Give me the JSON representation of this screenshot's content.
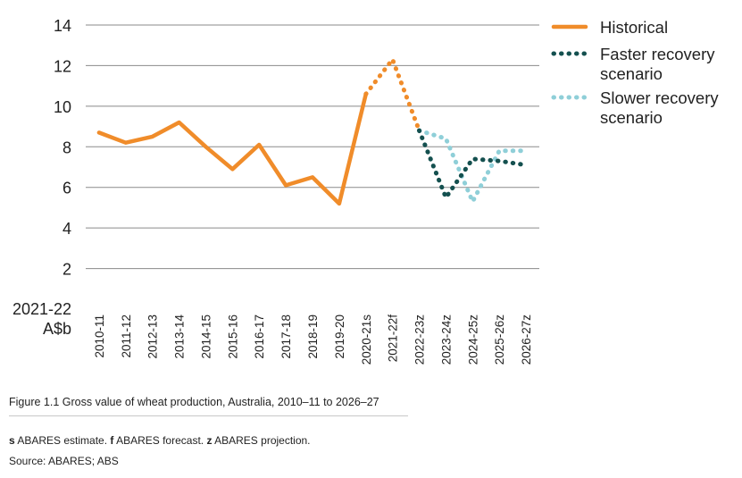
{
  "chart_data": {
    "type": "line",
    "title": "Figure 1.1 Gross value of wheat production, Australia, 2010–11 to 2026–27",
    "ylabel_line1": "2021-22",
    "ylabel_line2": "A$b",
    "ylim": [
      0,
      14
    ],
    "yticks": [
      2,
      4,
      6,
      8,
      10,
      12,
      14
    ],
    "grid": true,
    "legend_position": "right",
    "categories": [
      "2010-11",
      "2011-12",
      "2012-13",
      "2013-14",
      "2014-15",
      "2015-16",
      "2016-17",
      "2017-18",
      "2018-19",
      "2019-20",
      "2020-21s",
      "2021-22f",
      "2022-23z",
      "2023-24z",
      "2024-25z",
      "2025-26z",
      "2026-27z"
    ],
    "series": [
      {
        "name": "Historical",
        "color": "#f08c2a",
        "style": "solid",
        "values": [
          8.7,
          8.2,
          8.5,
          9.2,
          8.0,
          6.9,
          8.1,
          6.1,
          6.5,
          5.2,
          10.6,
          null,
          null,
          null,
          null,
          null,
          null
        ]
      },
      {
        "name": "Historical (forecast)",
        "color": "#f08c2a",
        "style": "dotted",
        "legend": false,
        "values": [
          null,
          null,
          null,
          null,
          null,
          null,
          null,
          null,
          null,
          null,
          10.6,
          12.3,
          8.8,
          null,
          null,
          null,
          null
        ]
      },
      {
        "name": "Faster recovery scenario",
        "color": "#14504f",
        "style": "dotted",
        "values": [
          null,
          null,
          null,
          null,
          null,
          null,
          null,
          null,
          null,
          null,
          null,
          null,
          8.8,
          5.5,
          7.4,
          7.3,
          7.1
        ]
      },
      {
        "name": "Slower recovery scenario",
        "color": "#8fcfd8",
        "style": "dotted",
        "values": [
          null,
          null,
          null,
          null,
          null,
          null,
          null,
          null,
          null,
          null,
          null,
          null,
          8.8,
          8.4,
          5.3,
          7.8,
          7.8
        ]
      }
    ],
    "legend": [
      {
        "label_lines": [
          "Historical"
        ],
        "color": "#f08c2a",
        "style": "solid"
      },
      {
        "label_lines": [
          "Faster recovery",
          "scenario"
        ],
        "color": "#14504f",
        "style": "dotted"
      },
      {
        "label_lines": [
          "Slower recovery",
          "scenario"
        ],
        "color": "#8fcfd8",
        "style": "dotted"
      }
    ]
  },
  "caption": "Figure 1.1 Gross value of wheat production, Australia, 2010–11 to 2026–27",
  "notes": {
    "s_key": "s",
    "s_text": " ABARES estimate. ",
    "f_key": "f",
    "f_text": " ABARES forecast. ",
    "z_key": "z",
    "z_text": " ABARES projection."
  },
  "source": "Source: ABARES; ABS"
}
